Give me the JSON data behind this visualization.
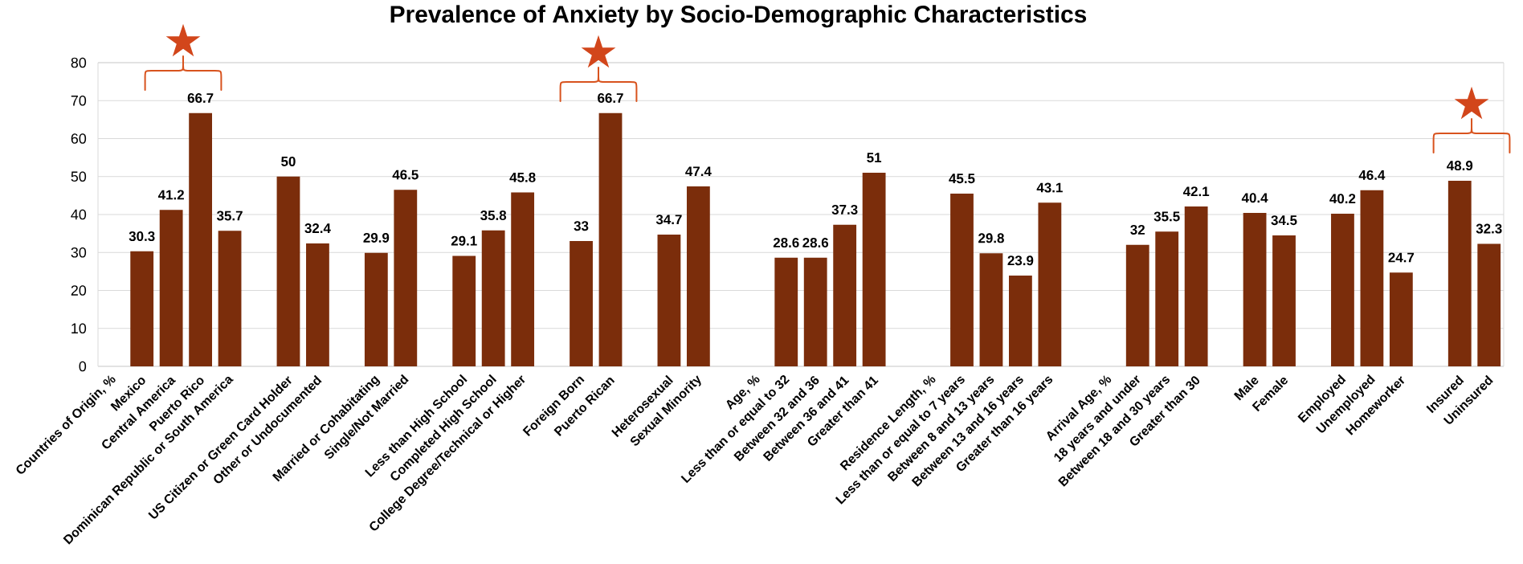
{
  "chart_data": {
    "type": "bar",
    "title": "Prevalence of Anxiety by Socio-Demographic Characteristics",
    "categories": [
      "Countries of Origin, %",
      "Mexico",
      "Central America",
      "Puerto Rico",
      "Dominican Republic or South America",
      null,
      "US Citizen or Green Card Holder",
      "Other or Undocumented",
      null,
      "Married or Cohabitating",
      "Single/Not Married",
      null,
      "Less than High School",
      "Completed High School",
      "College Degree/Technical or Higher",
      null,
      "Foreign Born",
      "Puerto Rican",
      null,
      "Heterosexual",
      "Sexual Minority",
      null,
      "Age, %",
      "Less than or equal to 32",
      "Between 32 and 36",
      "Between 36 and 41",
      "Greater than 41",
      null,
      "Residence Length, %",
      "Less than or equal to 7 years",
      "Between 8 and 13 years",
      "Between 13 and 16 years",
      "Greater than 16 years",
      null,
      "Arrival Age, %",
      "18 years and under",
      "Between 18 and 30 years",
      "Greater than 30",
      null,
      "Male",
      "Female",
      null,
      "Employed",
      "Unemployed",
      "Homeworker",
      null,
      "Insured",
      "Uninsured"
    ],
    "values": [
      null,
      30.3,
      41.2,
      66.7,
      35.7,
      null,
      50,
      32.4,
      null,
      29.9,
      46.5,
      null,
      29.1,
      35.8,
      45.8,
      null,
      33,
      66.7,
      null,
      34.7,
      47.4,
      null,
      null,
      28.6,
      28.6,
      37.3,
      51,
      null,
      null,
      45.5,
      29.8,
      23.9,
      43.1,
      null,
      null,
      32,
      35.5,
      42.1,
      null,
      40.4,
      34.5,
      null,
      40.2,
      46.4,
      24.7,
      null,
      48.9,
      32.3
    ],
    "color": "#7B2D0B",
    "ylim": [
      0,
      80
    ],
    "yticks": [
      0,
      10,
      20,
      30,
      40,
      50,
      60,
      70,
      80
    ],
    "grid": "y",
    "data_labels": true,
    "annotations": [
      "★",
      "★",
      "★"
    ]
  }
}
